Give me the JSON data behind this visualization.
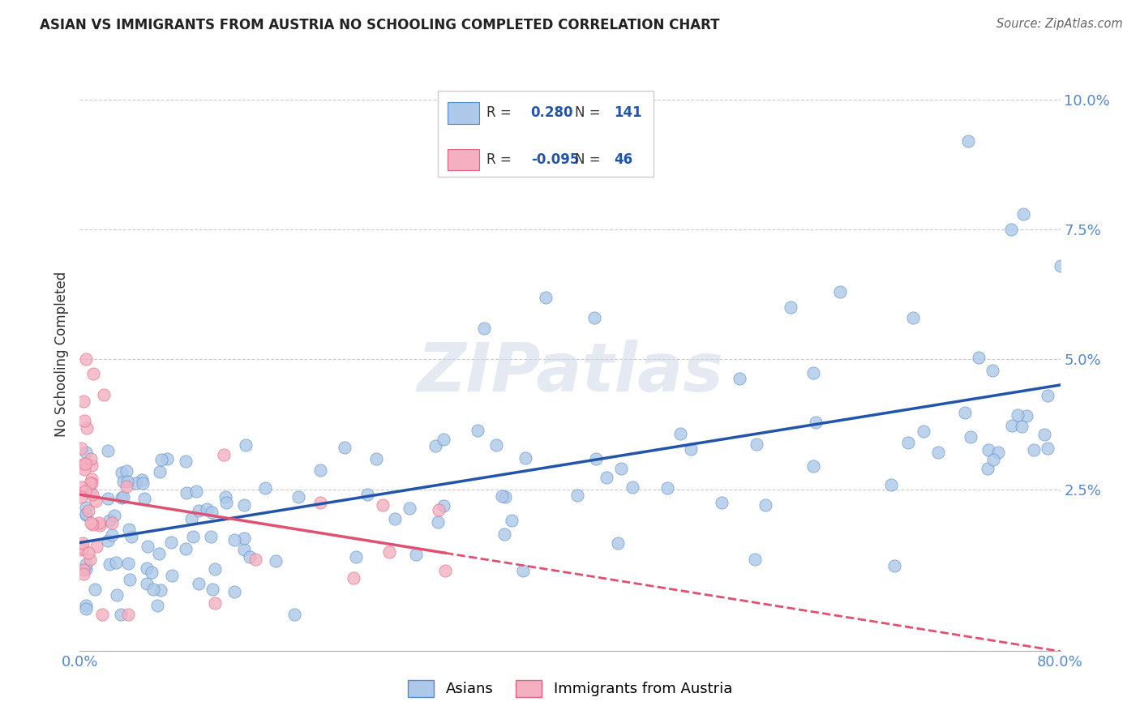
{
  "title": "ASIAN VS IMMIGRANTS FROM AUSTRIA NO SCHOOLING COMPLETED CORRELATION CHART",
  "source": "Source: ZipAtlas.com",
  "ylabel": "No Schooling Completed",
  "yticks": [
    0.0,
    0.025,
    0.05,
    0.075,
    0.1
  ],
  "ytick_labels": [
    "",
    "2.5%",
    "5.0%",
    "7.5%",
    "10.0%"
  ],
  "xmin": 0.0,
  "xmax": 0.8,
  "ymin": -0.006,
  "ymax": 0.108,
  "watermark": "ZIPatlas",
  "legend_R_blue": "0.280",
  "legend_N_blue": "141",
  "legend_R_pink": "-0.095",
  "legend_N_pink": "46",
  "blue_fill": "#adc8e8",
  "pink_fill": "#f4afc0",
  "blue_edge": "#5588cc",
  "pink_edge": "#e06080",
  "blue_line": "#2255aa",
  "pink_line": "#e05070",
  "grid_color": "#cccccc",
  "title_color": "#222222",
  "source_color": "#666666",
  "label_color": "#5588cc",
  "ylabel_color": "#333333",
  "legend_edge": "#cccccc"
}
